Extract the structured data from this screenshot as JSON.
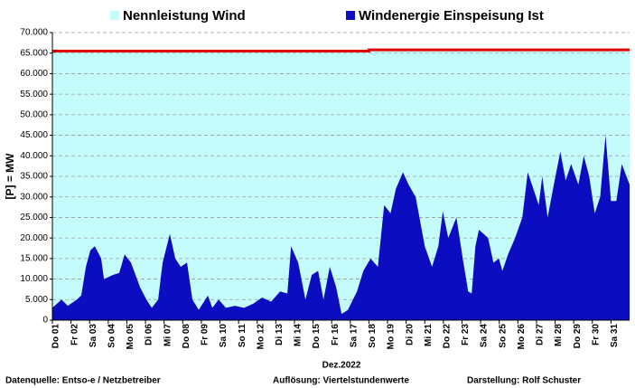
{
  "chart_data": {
    "type": "area",
    "y_label": "[P] = MW",
    "x_label": "Dez.2022",
    "footer": [
      "Datenquelle:  Entso-e  / Netzbetreiber",
      "Auflösung:  Viertelstundenwerte",
      "Darstellung:  Rolf Schuster"
    ],
    "xlim": [
      0,
      31
    ],
    "ylim": [
      0,
      70000
    ],
    "grid": true,
    "xticks": [
      {
        "value": 0,
        "label": "Do 01"
      },
      {
        "value": 1,
        "label": "Fr 02"
      },
      {
        "value": 2,
        "label": "Sa 03"
      },
      {
        "value": 3,
        "label": "So 04"
      },
      {
        "value": 4,
        "label": "Mo 05"
      },
      {
        "value": 5,
        "label": "Di 06"
      },
      {
        "value": 6,
        "label": "Mi 07"
      },
      {
        "value": 7,
        "label": "Do 08"
      },
      {
        "value": 8,
        "label": "Fr 09"
      },
      {
        "value": 9,
        "label": "Sa 10"
      },
      {
        "value": 10,
        "label": "So 11"
      },
      {
        "value": 11,
        "label": "Mo 12"
      },
      {
        "value": 12,
        "label": "Di 13"
      },
      {
        "value": 13,
        "label": "Mi 14"
      },
      {
        "value": 14,
        "label": "Do 15"
      },
      {
        "value": 15,
        "label": "Fr 16"
      },
      {
        "value": 16,
        "label": "Sa 17"
      },
      {
        "value": 17,
        "label": "So 18"
      },
      {
        "value": 18,
        "label": "Mo 19"
      },
      {
        "value": 19,
        "label": "Di 20"
      },
      {
        "value": 20,
        "label": "Mi 21"
      },
      {
        "value": 21,
        "label": "Do 22"
      },
      {
        "value": 22,
        "label": "Fr 23"
      },
      {
        "value": 23,
        "label": "Sa 24"
      },
      {
        "value": 24,
        "label": "So 25"
      },
      {
        "value": 25,
        "label": "Mo 26"
      },
      {
        "value": 26,
        "label": "Di 27"
      },
      {
        "value": 27,
        "label": "Mi 28"
      },
      {
        "value": 28,
        "label": "Do 29"
      },
      {
        "value": 29,
        "label": "Fr 30"
      },
      {
        "value": 30,
        "label": "Sa 31"
      }
    ],
    "yticks": [
      0,
      {
        "value": 5000,
        "label": "5.000"
      },
      {
        "value": 10000,
        "label": "10.000"
      },
      {
        "value": 15000,
        "label": "15.000"
      },
      {
        "value": 20000,
        "label": "20.000"
      },
      {
        "value": 25000,
        "label": "25.000"
      },
      {
        "value": 30000,
        "label": "30.000"
      },
      {
        "value": 35000,
        "label": "35.000"
      },
      {
        "value": 40000,
        "label": "40.000"
      },
      {
        "value": 45000,
        "label": "45.000"
      },
      {
        "value": 50000,
        "label": "50.000"
      },
      {
        "value": 55000,
        "label": "55.000"
      },
      {
        "value": 60000,
        "label": "60.000"
      },
      {
        "value": 65000,
        "label": "65.000"
      },
      {
        "value": 70000,
        "label": "70.000"
      }
    ],
    "series": [
      {
        "name": "Nennleistung Wind",
        "color": "#c4fcfc",
        "line_color": "#e00000",
        "x": [
          0,
          17,
          17,
          31
        ],
        "values": [
          65500,
          65500,
          65800,
          65800
        ]
      },
      {
        "name": "Windenergie Einspeisung Ist",
        "color": "#0c0cc0",
        "x": [
          0,
          0.49,
          0.83,
          1.31,
          1.55,
          1.8,
          2.04,
          2.28,
          2.62,
          2.77,
          3.25,
          3.59,
          3.88,
          4.22,
          4.71,
          5.05,
          5.34,
          5.68,
          5.92,
          6.31,
          6.6,
          6.89,
          7.23,
          7.52,
          7.86,
          8.35,
          8.59,
          8.93,
          9.32,
          9.81,
          10.29,
          10.78,
          11.26,
          11.75,
          12.23,
          12.62,
          12.82,
          13.2,
          13.59,
          13.93,
          14.27,
          14.56,
          14.9,
          15.24,
          15.53,
          15.87,
          16.36,
          16.7,
          17.09,
          17.48,
          17.82,
          18.16,
          18.45,
          18.83,
          19.13,
          19.51,
          20,
          20.39,
          20.73,
          20.97,
          21.26,
          21.7,
          22.04,
          22.33,
          22.52,
          22.72,
          22.91,
          23.4,
          23.69,
          23.98,
          24.17,
          24.47,
          24.85,
          25.24,
          25.53,
          25.83,
          26.12,
          26.31,
          26.6,
          26.89,
          27.28,
          27.57,
          27.86,
          28.25,
          28.54,
          28.83,
          29.13,
          29.42,
          29.71,
          30,
          30.29,
          30.58,
          31
        ],
        "values": [
          3000,
          5000,
          3500,
          5000,
          6000,
          13000,
          17000,
          18000,
          15000,
          10000,
          11000,
          11500,
          16000,
          14000,
          8000,
          5000,
          3000,
          5000,
          14000,
          21000,
          15000,
          13000,
          14000,
          5000,
          2500,
          6000,
          3000,
          5000,
          3000,
          3500,
          3000,
          4000,
          5500,
          4500,
          7000,
          6500,
          18000,
          14000,
          5000,
          11000,
          12000,
          5000,
          13000,
          8000,
          1500,
          2500,
          7000,
          12000,
          15000,
          13000,
          28000,
          26000,
          32000,
          36000,
          33000,
          30000,
          18000,
          13000,
          18000,
          26500,
          20000,
          25000,
          15000,
          7000,
          6500,
          18000,
          22000,
          20000,
          14000,
          15000,
          12000,
          16000,
          20000,
          25000,
          36000,
          32000,
          28000,
          35000,
          25000,
          32000,
          41000,
          34000,
          38000,
          33000,
          40000,
          35000,
          26000,
          30000,
          45000,
          29000,
          29000,
          38000,
          33000
        ]
      }
    ]
  }
}
